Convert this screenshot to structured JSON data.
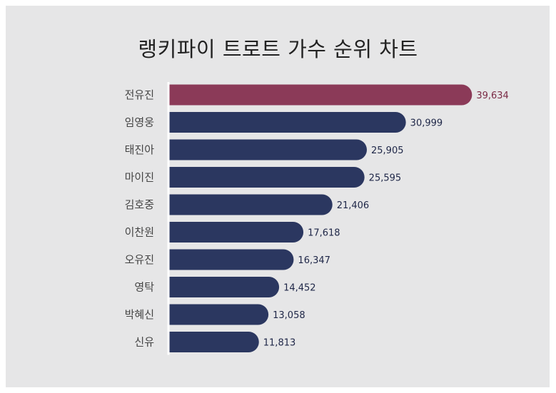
{
  "chart_data": {
    "type": "bar",
    "orientation": "horizontal",
    "title": "랭키파이 트로트 가수 순위 차트",
    "categories": [
      "전유진",
      "임영웅",
      "태진아",
      "마이진",
      "김호중",
      "이찬원",
      "오유진",
      "영탁",
      "박혜신",
      "신유"
    ],
    "values": [
      39634,
      30999,
      25905,
      25595,
      21406,
      17618,
      16347,
      14452,
      13058,
      11813
    ],
    "value_labels": [
      "39,634",
      "30,999",
      "25,905",
      "25,595",
      "21,406",
      "17,618",
      "16,347",
      "14,452",
      "13,058",
      "11,813"
    ],
    "xlim": [
      0,
      41000
    ],
    "grid": false,
    "legend": "none",
    "colors": {
      "highlight_bar": "#8b3a58",
      "bar": "#2b3760",
      "highlight_label": "#7a2a45",
      "label": "#1e2647",
      "panel_background": "#e6e6e7",
      "axis_line": "#ffffff"
    }
  }
}
